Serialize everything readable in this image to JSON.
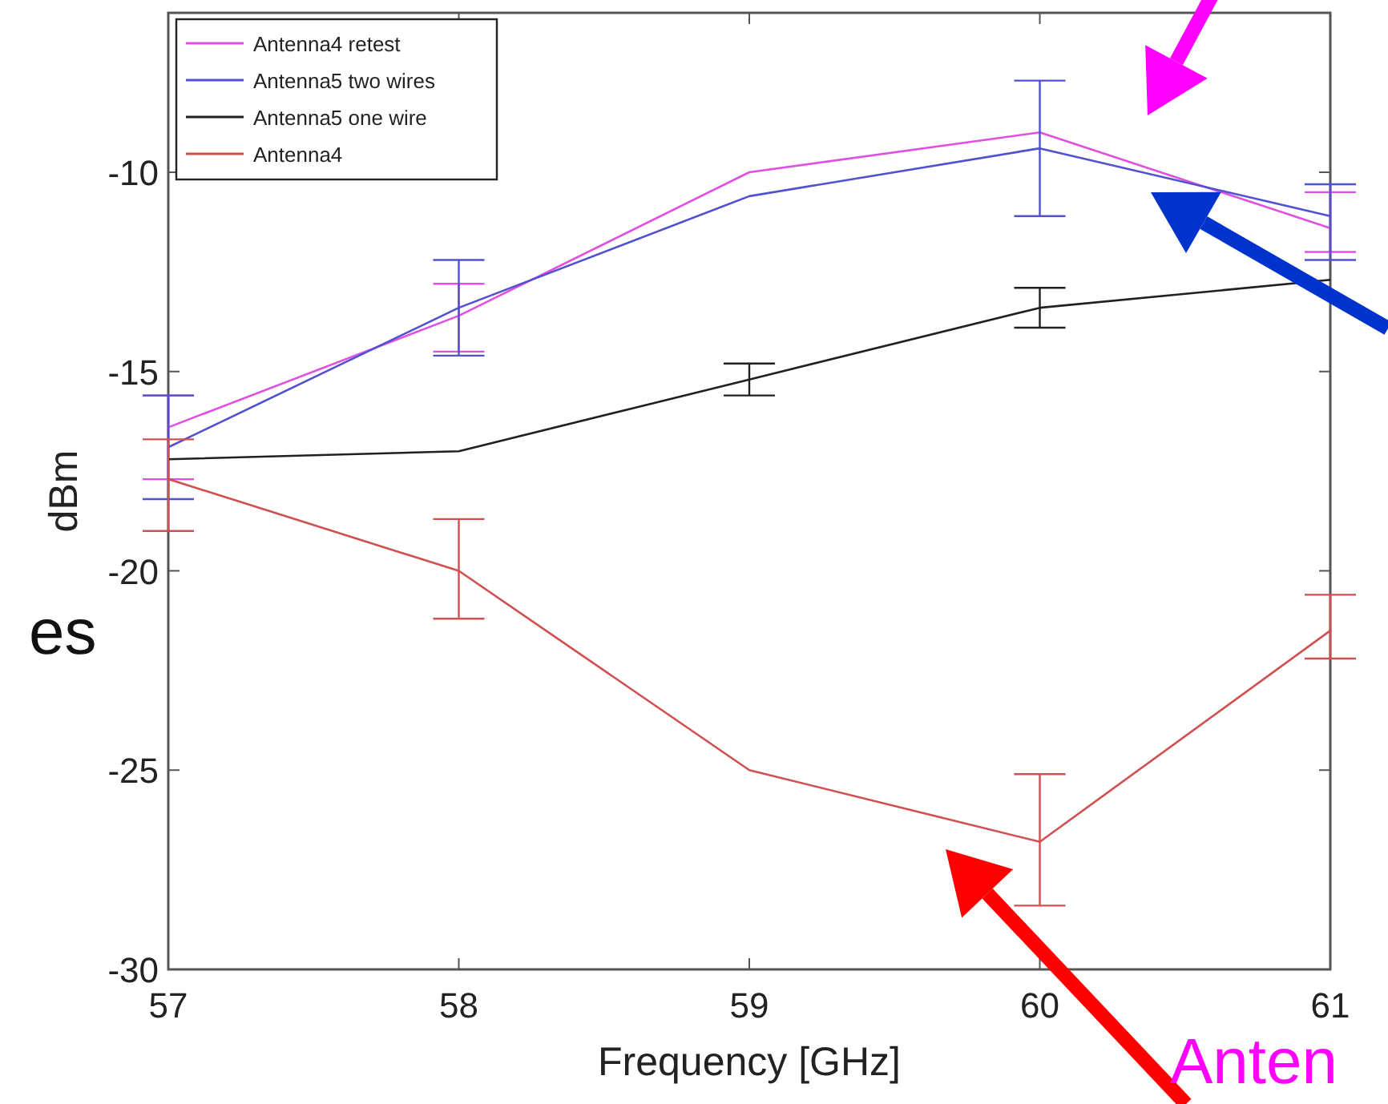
{
  "chart_data": {
    "type": "line",
    "xlabel": "Frequency [GHz]",
    "ylabel": "dBm",
    "x": [
      57,
      58,
      59,
      60,
      61
    ],
    "xlim": [
      57,
      61
    ],
    "xticks": [
      57,
      58,
      59,
      60,
      61
    ],
    "ylim": [
      -30,
      -6
    ],
    "yticks": [
      -30,
      -25,
      -20,
      -15,
      -10
    ],
    "legend": "top left",
    "grid": false,
    "marker": "none",
    "line_style": "solid",
    "series": [
      {
        "name": "Antenna4 retest",
        "color": "#e050e0",
        "values": [
          -16.4,
          -13.6,
          -10,
          -9,
          -11.4
        ],
        "errors": [
          [
            -17.7,
            -15.6
          ],
          [
            -14.5,
            -12.8
          ],
          null,
          null,
          [
            -12,
            -10.5
          ]
        ]
      },
      {
        "name": "Antenna5 two wires",
        "color": "#5050d0",
        "values": [
          -16.9,
          -13.4,
          -10.6,
          -9.4,
          -11.1
        ],
        "errors": [
          [
            -18.2,
            -15.6
          ],
          [
            -14.6,
            -12.2
          ],
          null,
          [
            -11.1,
            -7.7
          ],
          [
            -12.2,
            -10.3
          ]
        ]
      },
      {
        "name": "Antenna5 one wire",
        "color": "#202020",
        "values": [
          -17.2,
          -17,
          -15.2,
          -13.4,
          -12.7
        ],
        "errors": [
          null,
          null,
          [
            -15.6,
            -14.8
          ],
          [
            -13.9,
            -12.9
          ],
          null
        ]
      },
      {
        "name": "Antenna4",
        "color": "#d05050",
        "values": [
          -17.7,
          -20,
          -25,
          -26.8,
          -21.5
        ],
        "errors": [
          [
            -19,
            -16.7
          ],
          [
            -21.2,
            -18.7
          ],
          null,
          [
            -28.4,
            -25.1
          ],
          [
            -22.2,
            -20.6
          ]
        ]
      }
    ],
    "annotations": [
      "es",
      "Anten"
    ]
  }
}
